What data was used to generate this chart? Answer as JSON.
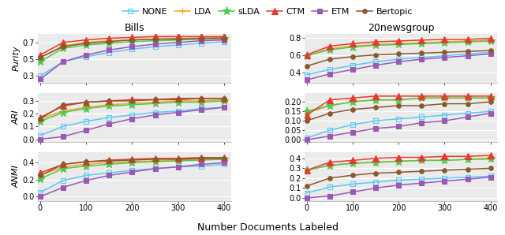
{
  "x": [
    0,
    50,
    100,
    150,
    200,
    250,
    300,
    350,
    400
  ],
  "models": [
    "NONE",
    "LDA",
    "sLDA",
    "CTM",
    "ETM",
    "Bertopic"
  ],
  "colors": [
    "#5bc8f5",
    "#f5a623",
    "#50c850",
    "#e8392e",
    "#9b59b6",
    "#8B5A2B"
  ],
  "markers": [
    "s",
    "+",
    "*",
    "^",
    "s",
    "o"
  ],
  "markersizes": [
    4,
    6,
    8,
    6,
    4,
    4
  ],
  "bills_purity": [
    [
      0.3,
      0.47,
      0.53,
      0.58,
      0.62,
      0.65,
      0.67,
      0.69,
      0.71
    ],
    [
      0.52,
      0.66,
      0.7,
      0.72,
      0.73,
      0.74,
      0.75,
      0.75,
      0.76
    ],
    [
      0.47,
      0.63,
      0.67,
      0.69,
      0.71,
      0.72,
      0.73,
      0.74,
      0.75
    ],
    [
      0.55,
      0.7,
      0.73,
      0.75,
      0.76,
      0.77,
      0.77,
      0.77,
      0.77
    ],
    [
      0.26,
      0.47,
      0.55,
      0.61,
      0.65,
      0.68,
      0.7,
      0.72,
      0.73
    ],
    [
      0.52,
      0.65,
      0.69,
      0.71,
      0.73,
      0.74,
      0.74,
      0.75,
      0.75
    ]
  ],
  "bills_ari": [
    [
      0.03,
      0.1,
      0.14,
      0.17,
      0.19,
      0.21,
      0.22,
      0.24,
      0.25
    ],
    [
      0.16,
      0.22,
      0.25,
      0.27,
      0.28,
      0.29,
      0.3,
      0.3,
      0.31
    ],
    [
      0.14,
      0.21,
      0.24,
      0.26,
      0.27,
      0.28,
      0.29,
      0.29,
      0.3
    ],
    [
      0.17,
      0.26,
      0.29,
      0.3,
      0.31,
      0.31,
      0.32,
      0.32,
      0.32
    ],
    [
      0.0,
      0.02,
      0.07,
      0.12,
      0.16,
      0.19,
      0.21,
      0.23,
      0.25
    ],
    [
      0.16,
      0.27,
      0.29,
      0.3,
      0.3,
      0.31,
      0.31,
      0.32,
      0.32
    ]
  ],
  "bills_anmi": [
    [
      0.05,
      0.19,
      0.25,
      0.28,
      0.31,
      0.33,
      0.35,
      0.36,
      0.38
    ],
    [
      0.25,
      0.35,
      0.38,
      0.4,
      0.41,
      0.42,
      0.43,
      0.44,
      0.44
    ],
    [
      0.21,
      0.33,
      0.36,
      0.38,
      0.4,
      0.41,
      0.42,
      0.43,
      0.44
    ],
    [
      0.28,
      0.38,
      0.41,
      0.43,
      0.44,
      0.45,
      0.45,
      0.46,
      0.46
    ],
    [
      0.0,
      0.11,
      0.19,
      0.25,
      0.29,
      0.33,
      0.35,
      0.38,
      0.4
    ],
    [
      0.25,
      0.38,
      0.41,
      0.42,
      0.43,
      0.44,
      0.44,
      0.45,
      0.45
    ]
  ],
  "news_purity": [
    [
      0.37,
      0.43,
      0.48,
      0.52,
      0.55,
      0.57,
      0.59,
      0.61,
      0.63
    ],
    [
      0.59,
      0.67,
      0.7,
      0.72,
      0.73,
      0.74,
      0.75,
      0.76,
      0.77
    ],
    [
      0.59,
      0.66,
      0.69,
      0.71,
      0.72,
      0.73,
      0.74,
      0.75,
      0.76
    ],
    [
      0.6,
      0.7,
      0.73,
      0.75,
      0.76,
      0.77,
      0.78,
      0.78,
      0.79
    ],
    [
      0.31,
      0.38,
      0.43,
      0.48,
      0.52,
      0.55,
      0.57,
      0.59,
      0.61
    ],
    [
      0.47,
      0.55,
      0.58,
      0.6,
      0.61,
      0.62,
      0.63,
      0.64,
      0.65
    ]
  ],
  "news_ari": [
    [
      0.01,
      0.05,
      0.08,
      0.1,
      0.11,
      0.12,
      0.13,
      0.14,
      0.15
    ],
    [
      0.14,
      0.18,
      0.2,
      0.21,
      0.21,
      0.22,
      0.22,
      0.22,
      0.22
    ],
    [
      0.15,
      0.18,
      0.2,
      0.21,
      0.21,
      0.22,
      0.22,
      0.22,
      0.22
    ],
    [
      0.13,
      0.21,
      0.22,
      0.23,
      0.23,
      0.23,
      0.23,
      0.23,
      0.23
    ],
    [
      0.0,
      0.02,
      0.04,
      0.06,
      0.07,
      0.09,
      0.1,
      0.12,
      0.14
    ],
    [
      0.1,
      0.14,
      0.16,
      0.17,
      0.18,
      0.18,
      0.19,
      0.19,
      0.2
    ]
  ],
  "news_anmi": [
    [
      0.05,
      0.11,
      0.14,
      0.16,
      0.18,
      0.19,
      0.2,
      0.21,
      0.22
    ],
    [
      0.28,
      0.33,
      0.35,
      0.36,
      0.37,
      0.38,
      0.38,
      0.39,
      0.39
    ],
    [
      0.28,
      0.33,
      0.35,
      0.36,
      0.37,
      0.38,
      0.38,
      0.39,
      0.4
    ],
    [
      0.28,
      0.36,
      0.38,
      0.4,
      0.41,
      0.41,
      0.42,
      0.42,
      0.43
    ],
    [
      0.0,
      0.02,
      0.06,
      0.1,
      0.13,
      0.15,
      0.17,
      0.19,
      0.21
    ],
    [
      0.12,
      0.2,
      0.23,
      0.25,
      0.26,
      0.27,
      0.28,
      0.29,
      0.3
    ]
  ],
  "bills_purity_ylim": [
    0.22,
    0.8
  ],
  "bills_ari_ylim": [
    -0.02,
    0.36
  ],
  "bills_anmi_ylim": [
    -0.05,
    0.52
  ],
  "news_purity_ylim": [
    0.28,
    0.84
  ],
  "news_ari_ylim": [
    -0.01,
    0.245
  ],
  "news_anmi_ylim": [
    -0.03,
    0.46
  ],
  "bills_purity_yticks": [
    0.3,
    0.5,
    0.7
  ],
  "bills_ari_yticks": [
    0.0,
    0.1,
    0.2,
    0.3
  ],
  "bills_anmi_yticks": [
    0.0,
    0.2,
    0.4
  ],
  "news_purity_yticks": [
    0.4,
    0.6,
    0.8
  ],
  "news_ari_yticks": [
    0.0,
    0.05,
    0.1,
    0.15,
    0.2
  ],
  "news_anmi_yticks": [
    0.0,
    0.1,
    0.2,
    0.3,
    0.4
  ],
  "xlim": [
    -5,
    415
  ],
  "xticks": [
    0,
    100,
    200,
    300,
    400
  ],
  "col_titles": [
    "Bills",
    "20newsgroup"
  ],
  "row_labels": [
    "Purity",
    "ARI",
    "ANMI"
  ],
  "xlabel": "Number Documents Labeled",
  "bg_color": "#ebebeb",
  "grid_color": "#ffffff",
  "title_fontsize": 9,
  "label_fontsize": 8,
  "tick_fontsize": 7,
  "legend_fontsize": 8
}
